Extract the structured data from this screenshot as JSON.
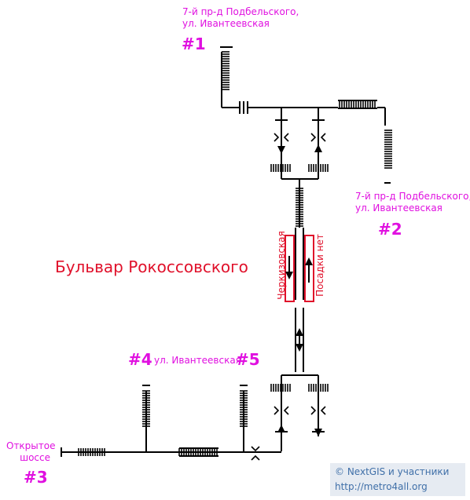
{
  "station_name": "Бульвар Рокоссовского",
  "exits": [
    {
      "number": "#1",
      "label": [
        "7-й пр-д Подбельского,",
        "ул. Ивантеевская"
      ]
    },
    {
      "number": "#2",
      "label": [
        "7-й пр-д Подбельского,",
        "ул. Ивантеевская"
      ]
    },
    {
      "number": "#3",
      "label": [
        "Открытое",
        "шоссе"
      ]
    },
    {
      "number": "#4",
      "label": []
    },
    {
      "number": "#5",
      "label": []
    }
  ],
  "street_between_4_5": "ул. Ивантеевская",
  "platform_signs": {
    "left": "Черкизовская",
    "right": "Посадки нет"
  },
  "credit": {
    "line1": "© NextGIS и участники",
    "line2": "http://metro4all.org"
  },
  "colors": {
    "exit_labels": "#e010e0",
    "station_name": "#e0102a",
    "lines": "#000000"
  }
}
